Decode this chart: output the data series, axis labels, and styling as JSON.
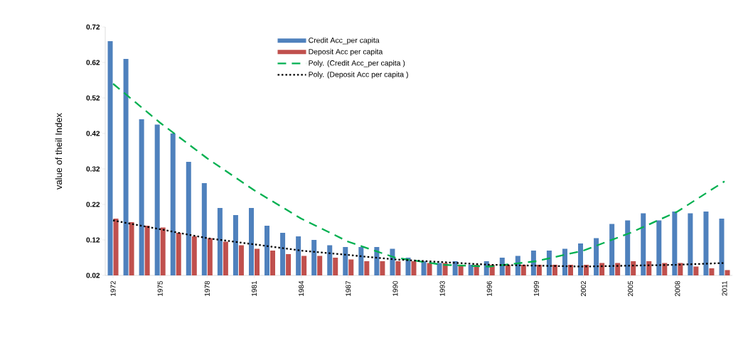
{
  "chart_data": {
    "type": "bar",
    "ylabel": "value of theil Index",
    "x": [
      1972,
      1973,
      1974,
      1975,
      1976,
      1977,
      1978,
      1979,
      1980,
      1981,
      1982,
      1983,
      1984,
      1985,
      1986,
      1987,
      1988,
      1989,
      1990,
      1991,
      1992,
      1993,
      1994,
      1995,
      1996,
      1997,
      1998,
      1999,
      2000,
      2001,
      2002,
      2003,
      2004,
      2005,
      2006,
      2007,
      2008,
      2009,
      2010,
      2011
    ],
    "xlim": [
      1971.5,
      2011.5
    ],
    "xticks": [
      1972,
      1975,
      1978,
      1981,
      1984,
      1987,
      1990,
      1993,
      1996,
      1999,
      2002,
      2005,
      2008,
      2011
    ],
    "ylim": [
      0.02,
      0.72
    ],
    "yticks": [
      0.02,
      0.12,
      0.22,
      0.32,
      0.42,
      0.52,
      0.62,
      0.72
    ],
    "legend": "top",
    "series": [
      {
        "name": "Credit Acc_per capita",
        "color": "#4f81bd",
        "values": [
          0.68,
          0.63,
          0.46,
          0.445,
          0.42,
          0.34,
          0.28,
          0.21,
          0.19,
          0.21,
          0.16,
          0.14,
          0.13,
          0.12,
          0.105,
          0.1,
          0.1,
          0.1,
          0.095,
          0.07,
          0.06,
          0.055,
          0.06,
          0.05,
          0.06,
          0.07,
          0.075,
          0.09,
          0.09,
          0.095,
          0.11,
          0.125,
          0.165,
          0.175,
          0.195,
          0.175,
          0.2,
          0.195,
          0.2,
          0.18
        ]
      },
      {
        "name": "Deposit Acc per capita",
        "color": "#c0504d",
        "values": [
          0.18,
          0.17,
          0.16,
          0.155,
          0.14,
          0.13,
          0.125,
          0.115,
          0.105,
          0.095,
          0.09,
          0.08,
          0.075,
          0.075,
          0.07,
          0.065,
          0.06,
          0.06,
          0.06,
          0.06,
          0.055,
          0.055,
          0.05,
          0.05,
          0.05,
          0.05,
          0.05,
          0.05,
          0.05,
          0.05,
          0.05,
          0.055,
          0.055,
          0.06,
          0.06,
          0.055,
          0.055,
          0.045,
          0.04,
          0.035
        ]
      },
      {
        "type": "line",
        "name": "Poly. (Credit Acc_per capita )",
        "color": "#00b050",
        "line_style": "dashed",
        "x": [
          1972,
          1975,
          1978,
          1981,
          1984,
          1987,
          1990,
          1993,
          1996,
          1999,
          2002,
          2005,
          2008,
          2011
        ],
        "values": [
          0.56,
          0.45,
          0.35,
          0.26,
          0.18,
          0.115,
          0.07,
          0.05,
          0.045,
          0.06,
          0.09,
          0.14,
          0.2,
          0.285
        ]
      },
      {
        "type": "line",
        "name": "Poly. (Deposit Acc per capita )",
        "color": "#000000",
        "line_style": "dotted",
        "x": [
          1972,
          1978,
          1984,
          1990,
          1996,
          2002,
          2008,
          2011
        ],
        "values": [
          0.175,
          0.125,
          0.09,
          0.065,
          0.05,
          0.045,
          0.05,
          0.055
        ]
      }
    ]
  }
}
